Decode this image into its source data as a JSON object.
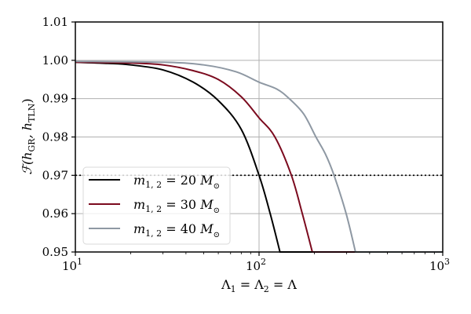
{
  "chart_data": {
    "type": "line",
    "title": "",
    "xlabel": "Λ₁ = Λ₂ = Λ",
    "ylabel": "ℱ(h_GR, h_TLN)",
    "xscale": "log",
    "xlim": [
      10,
      1000
    ],
    "ylim": [
      0.95,
      1.01
    ],
    "xticks": [
      10,
      100,
      1000
    ],
    "xtick_labels": [
      "10^1",
      "10^2",
      "10^3"
    ],
    "yticks": [
      0.95,
      0.96,
      0.97,
      0.98,
      0.99,
      1.0,
      1.01
    ],
    "ytick_labels": [
      "0.95",
      "0.96",
      "0.97",
      "0.98",
      "0.99",
      "1.00",
      "1.01"
    ],
    "grid": true,
    "legend_position": "lower left",
    "reference_line": {
      "y": 0.97,
      "style": "dotted",
      "color": "#000000"
    },
    "series": [
      {
        "name": "m_{1,2} = 20 M_⊙",
        "color": "#000000",
        "x": [
          10,
          15,
          20,
          30,
          43.8,
          60,
          80,
          100,
          115,
          130
        ],
        "y": [
          0.9995,
          0.9992,
          0.9988,
          0.9975,
          0.9943,
          0.9895,
          0.982,
          0.97,
          0.96,
          0.95
        ]
      },
      {
        "name": "m_{1,2} = 30 M_⊙",
        "color": "#7b0a1e",
        "x": [
          10,
          20,
          30,
          43.8,
          60,
          80,
          100,
          122,
          150,
          172,
          195
        ],
        "y": [
          0.9995,
          0.9993,
          0.9988,
          0.9973,
          0.995,
          0.9905,
          0.985,
          0.98,
          0.97,
          0.96,
          0.95
        ]
      },
      {
        "name": "m_{1,2} = 40 M_⊙",
        "color": "#8e98a3",
        "x": [
          10,
          30,
          50,
          75,
          100,
          125,
          146,
          175,
          204,
          230,
          256,
          298,
          335
        ],
        "y": [
          0.9997,
          0.9995,
          0.9988,
          0.997,
          0.9943,
          0.9925,
          0.99,
          0.986,
          0.98,
          0.9755,
          0.97,
          0.96,
          0.95
        ]
      }
    ]
  },
  "legend": {
    "items": [
      {
        "prefix": "m",
        "sub": "1, 2",
        "eq": " = 20 ",
        "unit": "M",
        "unit_sub": "⊙"
      },
      {
        "prefix": "m",
        "sub": "1, 2",
        "eq": " = 30 ",
        "unit": "M",
        "unit_sub": "⊙"
      },
      {
        "prefix": "m",
        "sub": "1, 2",
        "eq": " = 40 ",
        "unit": "M",
        "unit_sub": "⊙"
      }
    ]
  },
  "axes": {
    "x_label_parts": {
      "a": "Λ",
      "a_sub": "1",
      "b": "Λ",
      "b_sub": "2",
      "c": "Λ",
      "eq": " = "
    },
    "y_label_parts": {
      "F": "ℱ(h",
      "sub1": "GR",
      "mid": ", h",
      "sub2": "TLN",
      "end": ")"
    }
  }
}
